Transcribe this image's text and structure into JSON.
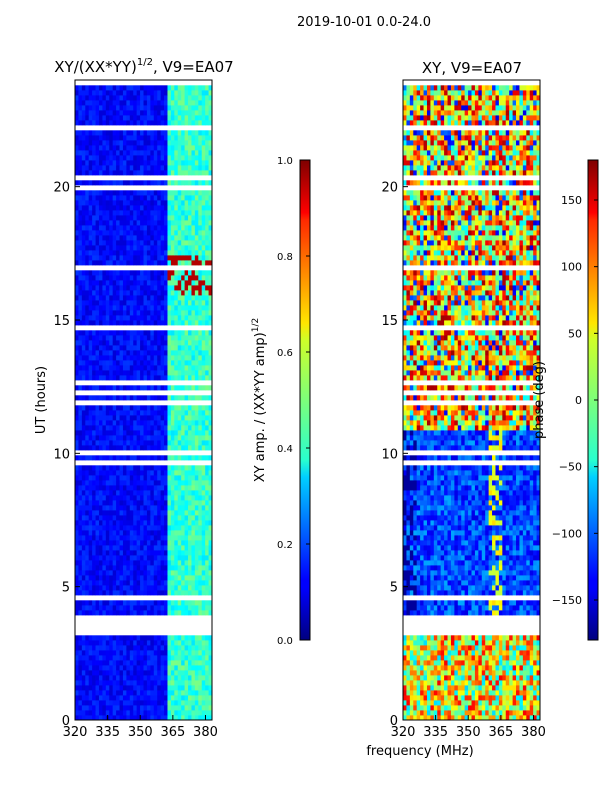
{
  "figure_title": "2019-10-01 0.0-24.0",
  "shared_xlabel": "frequency (MHz)",
  "chart_data": [
    {
      "type": "heatmap",
      "title": "XY/(XX*YY)^1/2, V9=EA07",
      "title_main": "XY/(XX*YY)",
      "title_sup": "1/2",
      "title_suffix": ", V9=EA07",
      "xlabel": "frequency (MHz)",
      "ylabel": "UT (hours)",
      "xlim": [
        320,
        383
      ],
      "ylim": [
        0,
        24
      ],
      "xticks": [
        320,
        335,
        350,
        365,
        380
      ],
      "yticks": [
        0,
        5,
        10,
        15,
        20
      ],
      "colorbar": {
        "label": "XY amp. / (XX*YY amp)^1/2",
        "label_main": "XY amp. / (XX*YY amp)",
        "label_sup": "1/2",
        "range": [
          0.0,
          1.0
        ],
        "ticks": [
          "0.0",
          "0.2",
          "0.4",
          "0.6",
          "0.8",
          "1.0"
        ],
        "tick_values": [
          0.0,
          0.2,
          0.4,
          0.6,
          0.8,
          1.0
        ],
        "colormap": "jet"
      },
      "data_gaps_hours": [
        [
          3.15,
          4.0
        ]
      ],
      "typical_values": {
        "below_362MHz": 0.08,
        "above_362MHz": 0.35,
        "peaks_16h_17.5h": 0.95
      }
    },
    {
      "type": "heatmap",
      "title": "XY, V9=EA07",
      "xlabel": "frequency (MHz)",
      "ylabel": "",
      "xlim": [
        320,
        383
      ],
      "ylim": [
        0,
        24
      ],
      "xticks": [
        320,
        335,
        350,
        365,
        380
      ],
      "yticks": [
        0,
        5,
        10,
        15,
        20
      ],
      "colorbar": {
        "label": "phase (deg)",
        "range": [
          -180,
          180
        ],
        "ticks": [
          "150",
          "100",
          "50",
          "0",
          "−50",
          "−100",
          "−150"
        ],
        "tick_values": [
          150,
          100,
          50,
          0,
          -50,
          -100,
          -150
        ],
        "colormap": "jet"
      },
      "data_gaps_hours": [
        [
          3.15,
          4.0
        ]
      ],
      "typical_values": {
        "4h_to_10.8h": -110,
        "after_10.8h": 60,
        "before_3h": 40
      }
    }
  ]
}
